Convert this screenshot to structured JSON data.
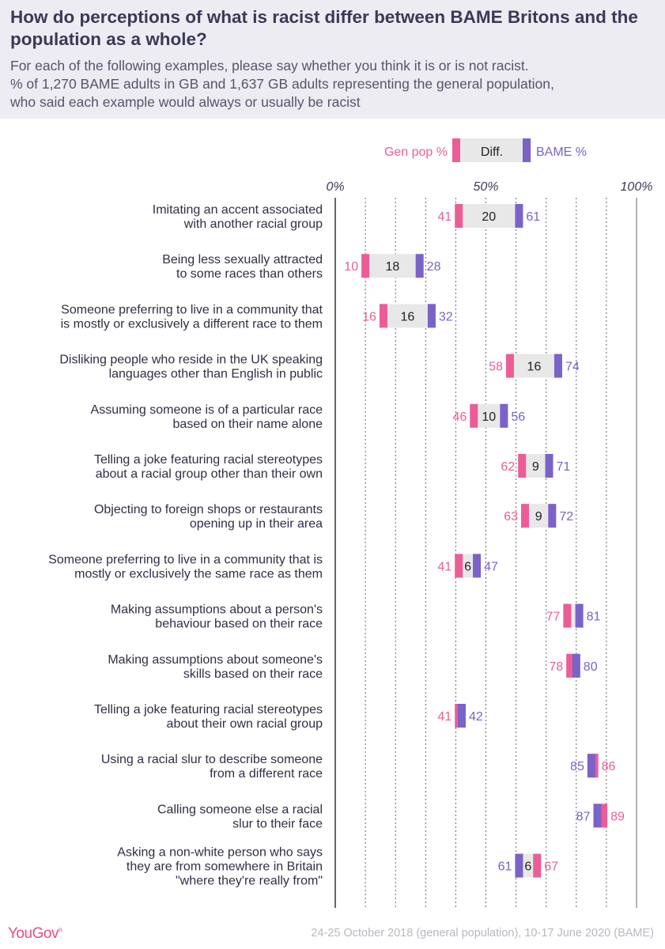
{
  "header": {
    "title": "How do perceptions of what is racist differ between BAME Britons and the population as a whole?",
    "subtitle_lines": [
      "For each of the following examples, please say whether you think it is or is not racist.",
      "% of 1,270 BAME adults in GB and 1,637 GB adults representing the general population,",
      "who said each example would always or usually be racist"
    ]
  },
  "footer": {
    "logo": "YouGov",
    "source": "24-25 October 2018 (general population), 10-17 June 2020 (BAME)"
  },
  "colors": {
    "gen_pop": "#ec5d98",
    "bame": "#7b62c8",
    "diff_fill": "#e8e8e8",
    "grid": "#666666",
    "header_bg": "#eeecf3"
  },
  "chart_data": {
    "type": "dumbbell",
    "legend": {
      "gen_pop": "Gen pop %",
      "diff": "Diff.",
      "bame": "BAME %"
    },
    "axis": {
      "xlim": [
        0,
        100
      ],
      "ticks": [
        0,
        50,
        100
      ],
      "tick_labels": [
        "0%",
        "50%",
        "100%"
      ],
      "gridlines": [
        10,
        20,
        30,
        40,
        50,
        60,
        70,
        80,
        90,
        100
      ]
    },
    "rows": [
      {
        "label": [
          "Imitating an accent associated",
          "with another racial group"
        ],
        "gen_pop": 41,
        "bame": 61,
        "diff": "20"
      },
      {
        "label": [
          "Being less sexually attracted",
          "to some races than others"
        ],
        "gen_pop": 10,
        "bame": 28,
        "diff": "18"
      },
      {
        "label": [
          "Someone preferring to live in a community that",
          "is mostly or exclusively a different race to them"
        ],
        "gen_pop": 16,
        "bame": 32,
        "diff": "16"
      },
      {
        "label": [
          "Disliking people who reside in the UK speaking",
          "languages other than English in public"
        ],
        "gen_pop": 58,
        "bame": 74,
        "diff": "16"
      },
      {
        "label": [
          "Assuming someone is of a particular race",
          "based on their name alone"
        ],
        "gen_pop": 46,
        "bame": 56,
        "diff": "10"
      },
      {
        "label": [
          "Telling a joke featuring racial stereotypes",
          "about a racial group other than their own"
        ],
        "gen_pop": 62,
        "bame": 71,
        "diff": "9"
      },
      {
        "label": [
          "Objecting to foreign shops or restaurants",
          "opening up in their area"
        ],
        "gen_pop": 63,
        "bame": 72,
        "diff": "9"
      },
      {
        "label": [
          "Someone preferring to live in a community that is",
          "mostly or exclusively the same race as them"
        ],
        "gen_pop": 41,
        "bame": 47,
        "diff": "6"
      },
      {
        "label": [
          "Making assumptions about a person's",
          "behaviour based on their race"
        ],
        "gen_pop": 77,
        "bame": 81,
        "diff": ""
      },
      {
        "label": [
          "Making assumptions about someone's",
          "skills based on their race"
        ],
        "gen_pop": 78,
        "bame": 80,
        "diff": ""
      },
      {
        "label": [
          "Telling a joke featuring racial stereotypes",
          "about their own racial group"
        ],
        "gen_pop": 41,
        "bame": 42,
        "diff": ""
      },
      {
        "label": [
          "Using a racial slur to describe someone",
          "from a different race"
        ],
        "gen_pop": 86,
        "bame": 85,
        "diff": ""
      },
      {
        "label": [
          "Calling someone else a racial",
          "slur to their face"
        ],
        "gen_pop": 89,
        "bame": 87,
        "diff": ""
      },
      {
        "label": [
          "Asking a non-white person who says",
          "they are from somewhere in Britain",
          "\"where they're really from\""
        ],
        "gen_pop": 67,
        "bame": 61,
        "diff": "6"
      }
    ]
  }
}
